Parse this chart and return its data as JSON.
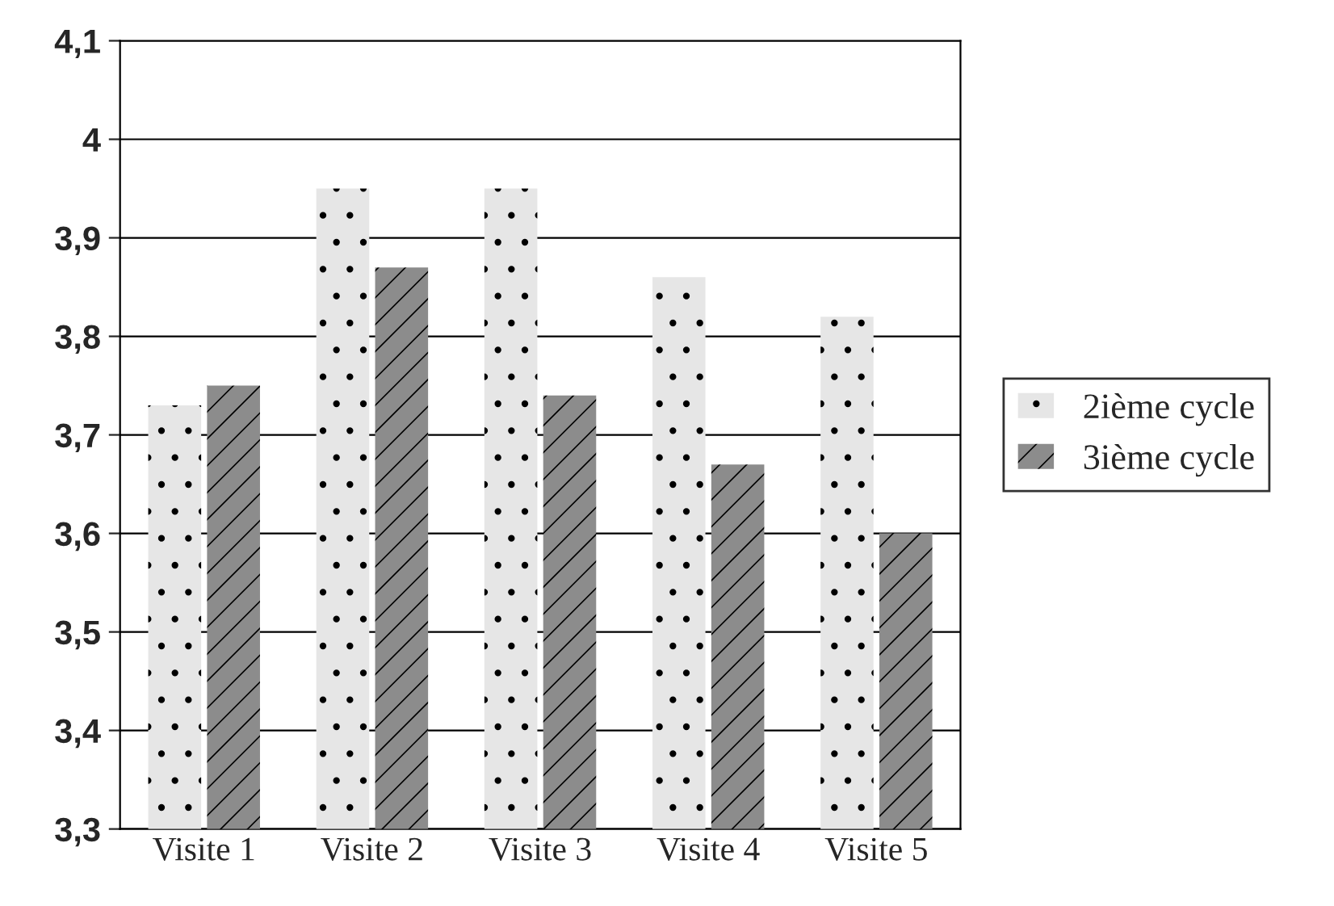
{
  "chart_data": {
    "type": "bar",
    "categories": [
      "Visite 1",
      "Visite 2",
      "Visite 3",
      "Visite 4",
      "Visite 5"
    ],
    "series": [
      {
        "name": "2ième cycle",
        "color": "#e6e6e6",
        "values": [
          3.73,
          3.95,
          3.95,
          3.86,
          3.82
        ]
      },
      {
        "name": "3ième cycle",
        "color": "#8c8c8c",
        "values": [
          3.75,
          3.87,
          3.74,
          3.67,
          3.6
        ]
      }
    ],
    "ylim": [
      3.3,
      4.1
    ],
    "yticks": [
      {
        "value": 3.3,
        "label": "3,3"
      },
      {
        "value": 3.4,
        "label": "3,4"
      },
      {
        "value": 3.5,
        "label": "3,5"
      },
      {
        "value": 3.6,
        "label": "3,6"
      },
      {
        "value": 3.7,
        "label": "3,7"
      },
      {
        "value": 3.8,
        "label": "3,8"
      },
      {
        "value": 3.9,
        "label": "3,9"
      },
      {
        "value": 4.0,
        "label": "4"
      },
      {
        "value": 4.1,
        "label": "4,1"
      }
    ],
    "grid": "y",
    "legend": "right"
  }
}
